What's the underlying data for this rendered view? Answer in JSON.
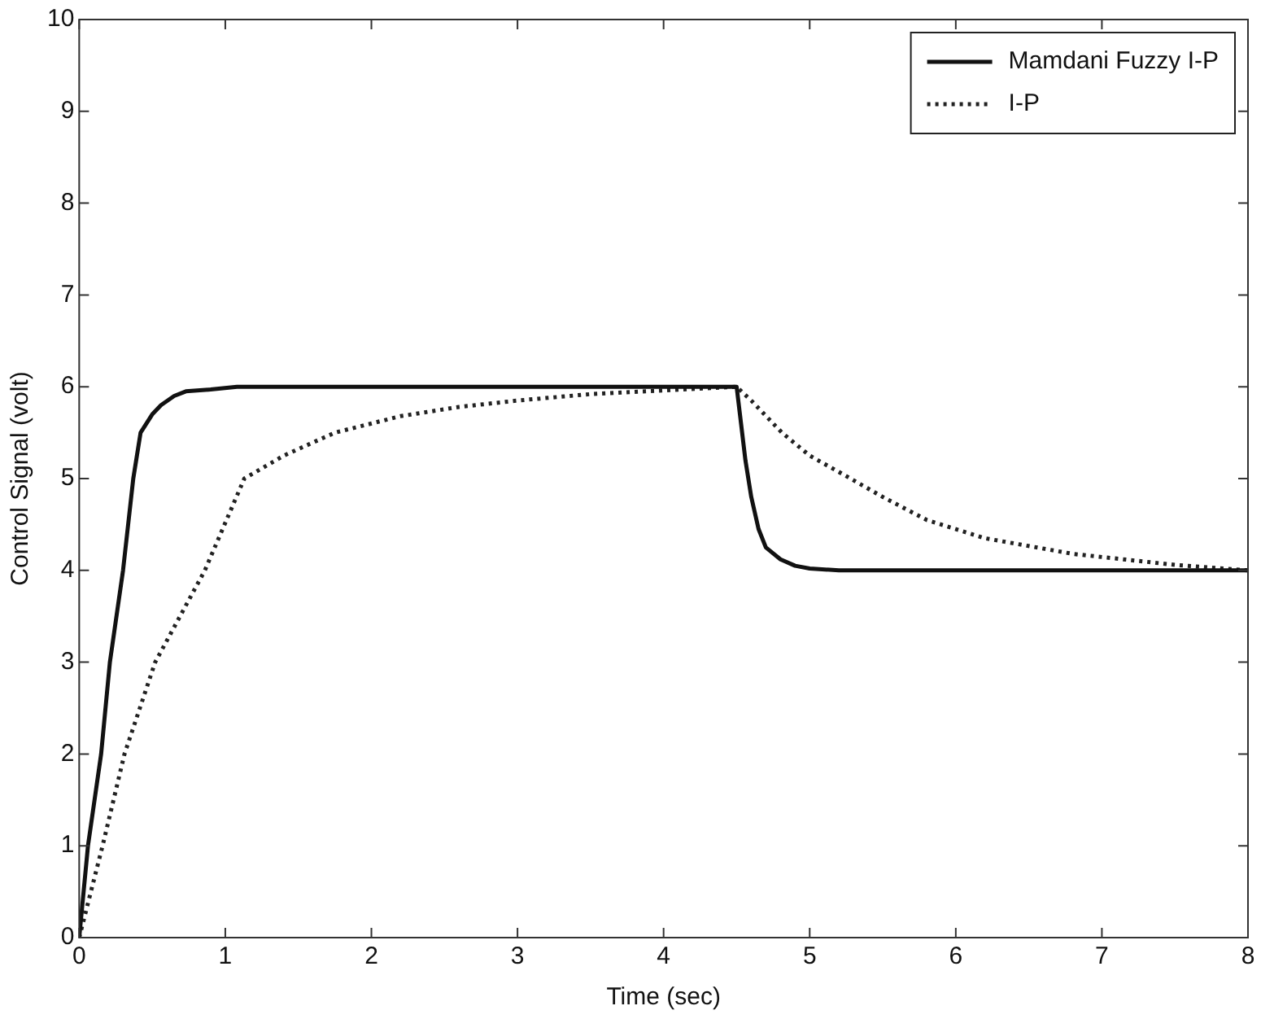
{
  "chart_data": {
    "type": "line",
    "xlabel": "Time (sec)",
    "ylabel": "Control Signal (volt)",
    "xlim": [
      0,
      8
    ],
    "ylim": [
      0,
      10
    ],
    "xticks": [
      0,
      1,
      2,
      3,
      4,
      5,
      6,
      7,
      8
    ],
    "yticks": [
      0,
      1,
      2,
      3,
      4,
      5,
      6,
      7,
      8,
      9,
      10
    ],
    "grid": false,
    "legend": "top right",
    "marker": "none",
    "series": [
      {
        "name": "Mamdani Fuzzy I-P",
        "color": "#111111",
        "line_style": "solid",
        "x": [
          0,
          0.06,
          0.15,
          0.21,
          0.3,
          0.37,
          0.42,
          0.5,
          0.56,
          0.65,
          0.73,
          0.9,
          1.08,
          2,
          3,
          4,
          4.5,
          4.53,
          4.56,
          4.6,
          4.65,
          4.7,
          4.8,
          4.9,
          5.0,
          5.2,
          6,
          7,
          8
        ],
        "values": [
          0,
          1,
          2,
          3,
          4,
          5,
          5.5,
          5.7,
          5.8,
          5.9,
          5.95,
          5.97,
          6,
          6,
          6,
          6,
          6,
          5.6,
          5.2,
          4.8,
          4.45,
          4.25,
          4.12,
          4.05,
          4.02,
          4,
          4,
          4,
          4
        ]
      },
      {
        "name": "I-P",
        "color": "#222222",
        "line_style": "dotted",
        "x": [
          0,
          0.16,
          0.31,
          0.52,
          0.86,
          1.13,
          1.4,
          1.75,
          2.2,
          2.6,
          3,
          3.5,
          4,
          4.5,
          4.6,
          4.81,
          5.0,
          5.28,
          5.5,
          5.8,
          6.2,
          6.8,
          7.5,
          8
        ],
        "values": [
          0,
          1,
          2,
          3,
          4,
          5,
          5.25,
          5.5,
          5.68,
          5.78,
          5.85,
          5.92,
          5.96,
          6,
          5.85,
          5.5,
          5.25,
          5,
          4.8,
          4.55,
          4.35,
          4.18,
          4.06,
          4
        ]
      }
    ]
  }
}
